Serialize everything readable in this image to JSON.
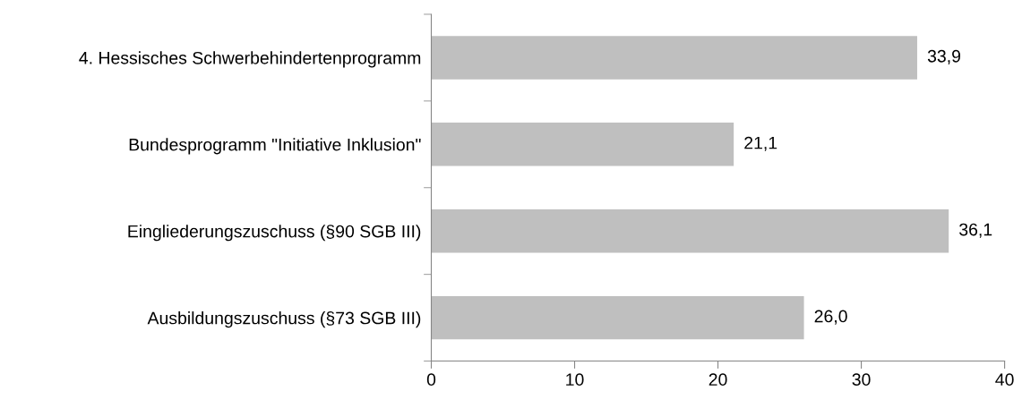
{
  "chart_data": {
    "type": "bar",
    "orientation": "horizontal",
    "categories": [
      "4. Hessisches Schwerbehindertenprogramm",
      "Bundesprogramm \"Initiative Inklusion\"",
      "Eingliederungszuschuss (§90 SGB III)",
      "Ausbildungszuschuss (§73 SGB III)"
    ],
    "values": [
      33.9,
      21.1,
      36.1,
      26.0
    ],
    "value_labels": [
      "33,9",
      "21,1",
      "36,1",
      "26,0"
    ],
    "color": "#bfbfbf",
    "xlim": [
      0,
      40
    ],
    "xticks": [
      0,
      10,
      20,
      30,
      40
    ],
    "grid": false,
    "legend": false
  }
}
